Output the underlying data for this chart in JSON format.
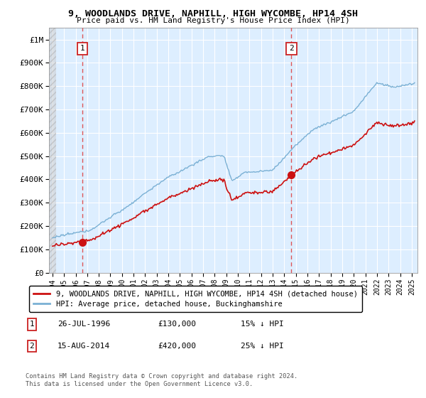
{
  "title": "9, WOODLANDS DRIVE, NAPHILL, HIGH WYCOMBE, HP14 4SH",
  "subtitle": "Price paid vs. HM Land Registry's House Price Index (HPI)",
  "ylim": [
    0,
    1050000
  ],
  "yticks": [
    0,
    100000,
    200000,
    300000,
    400000,
    500000,
    600000,
    700000,
    800000,
    900000,
    1000000
  ],
  "ytick_labels": [
    "£0",
    "£100K",
    "£200K",
    "£300K",
    "£400K",
    "£500K",
    "£600K",
    "£700K",
    "£800K",
    "£900K",
    "£1M"
  ],
  "xlim_start": 1993.7,
  "xlim_end": 2025.5,
  "sale1_year": 1996.57,
  "sale1_price": 130000,
  "sale1_label": "1",
  "sale2_year": 2014.62,
  "sale2_price": 420000,
  "sale2_label": "2",
  "hpi_color": "#7ab0d4",
  "price_color": "#cc1111",
  "vline_color": "#dd4444",
  "chart_bg": "#ddeeff",
  "legend_entries": [
    "9, WOODLANDS DRIVE, NAPHILL, HIGH WYCOMBE, HP14 4SH (detached house)",
    "HPI: Average price, detached house, Buckinghamshire"
  ],
  "annotation1": [
    "1",
    "26-JUL-1996",
    "£130,000",
    "15% ↓ HPI"
  ],
  "annotation2": [
    "2",
    "15-AUG-2014",
    "£420,000",
    "25% ↓ HPI"
  ],
  "footnote": "Contains HM Land Registry data © Crown copyright and database right 2024.\nThis data is licensed under the Open Government Licence v3.0."
}
